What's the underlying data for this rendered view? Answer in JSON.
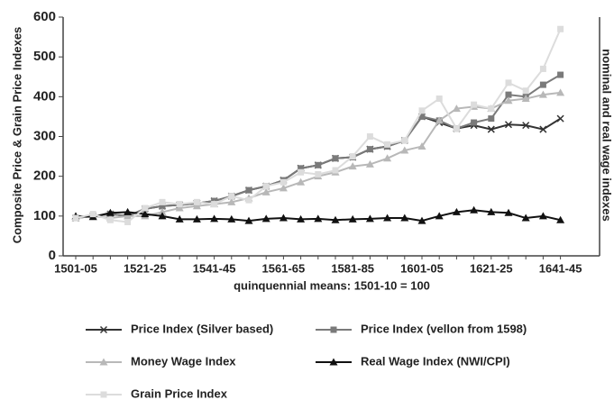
{
  "chart_data": {
    "type": "line",
    "y_label": "Composite Price & Grain Price Indexes",
    "y2_label": "nominal and real wage indexes",
    "x_label": "quinquennial means: 1501-10 = 100",
    "categories": [
      "1501-05",
      null,
      null,
      null,
      "1521-25",
      null,
      null,
      null,
      "1541-45",
      null,
      null,
      null,
      "1561-65",
      null,
      null,
      null,
      "1581-85",
      null,
      null,
      null,
      "1601-05",
      null,
      null,
      null,
      "1621-25",
      null,
      null,
      null,
      "1641-45"
    ],
    "ylim": [
      0,
      600
    ],
    "yticks": [
      0,
      100,
      200,
      300,
      400,
      500,
      600
    ],
    "legend": "bottom",
    "series": [
      {
        "name": "Price Index (Silver based)",
        "color": "#333333",
        "marker": "x",
        "values": [
          95,
          100,
          105,
          100,
          118,
          125,
          128,
          132,
          138,
          150,
          165,
          175,
          190,
          220,
          228,
          245,
          248,
          268,
          275,
          290,
          350,
          335,
          320,
          328,
          318,
          330,
          328,
          318,
          345
        ]
      },
      {
        "name": "Price Index (vellon from 1598)",
        "color": "#7a7a7a",
        "marker": "square",
        "values": [
          95,
          100,
          105,
          100,
          118,
          125,
          128,
          132,
          138,
          150,
          165,
          175,
          190,
          220,
          228,
          245,
          248,
          268,
          275,
          290,
          350,
          340,
          320,
          335,
          345,
          405,
          400,
          430,
          455
        ]
      },
      {
        "name": "Money Wage Index",
        "color": "#b8b8b8",
        "marker": "triangle",
        "values": [
          95,
          100,
          95,
          100,
          100,
          110,
          120,
          125,
          130,
          135,
          145,
          160,
          170,
          185,
          200,
          210,
          225,
          230,
          245,
          265,
          275,
          340,
          370,
          375,
          370,
          390,
          395,
          405,
          410
        ]
      },
      {
        "name": "Real Wage Index (NWI/CPI)",
        "color": "#111111",
        "marker": "triangle",
        "values": [
          100,
          98,
          108,
          110,
          105,
          100,
          92,
          92,
          93,
          92,
          88,
          93,
          95,
          92,
          93,
          90,
          92,
          93,
          95,
          95,
          88,
          100,
          110,
          115,
          110,
          108,
          95,
          100,
          90
        ]
      },
      {
        "name": "Grain Price Index",
        "color": "#dcdcdc",
        "marker": "square",
        "values": [
          95,
          105,
          90,
          85,
          120,
          135,
          130,
          135,
          130,
          150,
          140,
          175,
          185,
          210,
          205,
          215,
          250,
          300,
          280,
          290,
          365,
          395,
          320,
          380,
          370,
          435,
          415,
          470,
          570
        ]
      }
    ]
  }
}
